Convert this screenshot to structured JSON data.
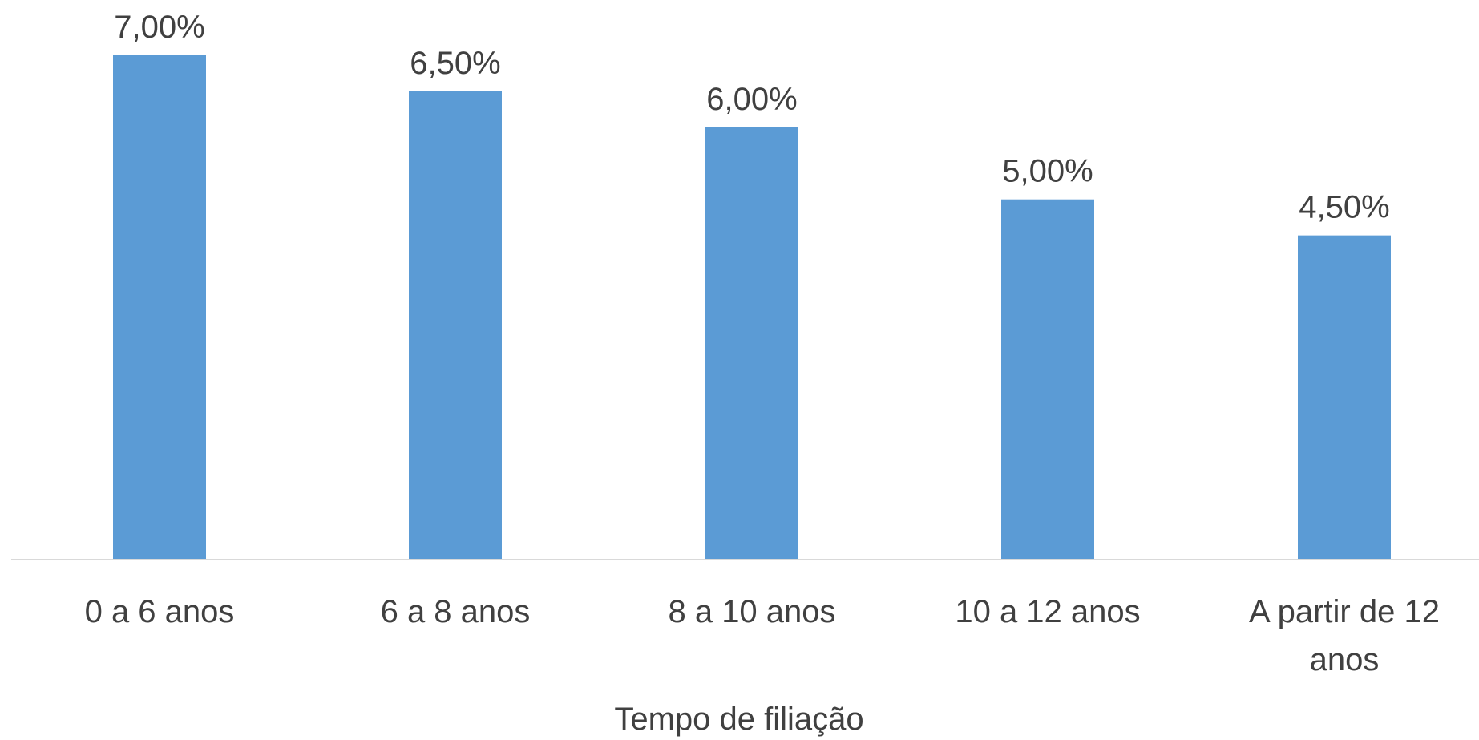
{
  "chart_data": {
    "type": "bar",
    "categories": [
      "0 a 6 anos",
      "6 a 8 anos",
      "8 a 10 anos",
      "10 a 12 anos",
      "A partir de 12 anos"
    ],
    "category_lines": [
      [
        "0 a 6 anos"
      ],
      [
        "6 a 8 anos"
      ],
      [
        "8 a 10 anos"
      ],
      [
        "10 a 12 anos"
      ],
      [
        "A partir de 12",
        "anos"
      ]
    ],
    "values": [
      7.0,
      6.5,
      6.0,
      5.0,
      4.5
    ],
    "value_labels": [
      "7,00%",
      "6,50%",
      "6,00%",
      "5,00%",
      "4,50%"
    ],
    "title": "",
    "xlabel": "Tempo de filiação",
    "ylabel": "",
    "ylim": [
      0,
      7.0
    ],
    "grid": false,
    "legend": "none",
    "colors": {
      "bar": "#5b9bd5",
      "axis": "#d9d9d9",
      "text": "#404040"
    }
  }
}
